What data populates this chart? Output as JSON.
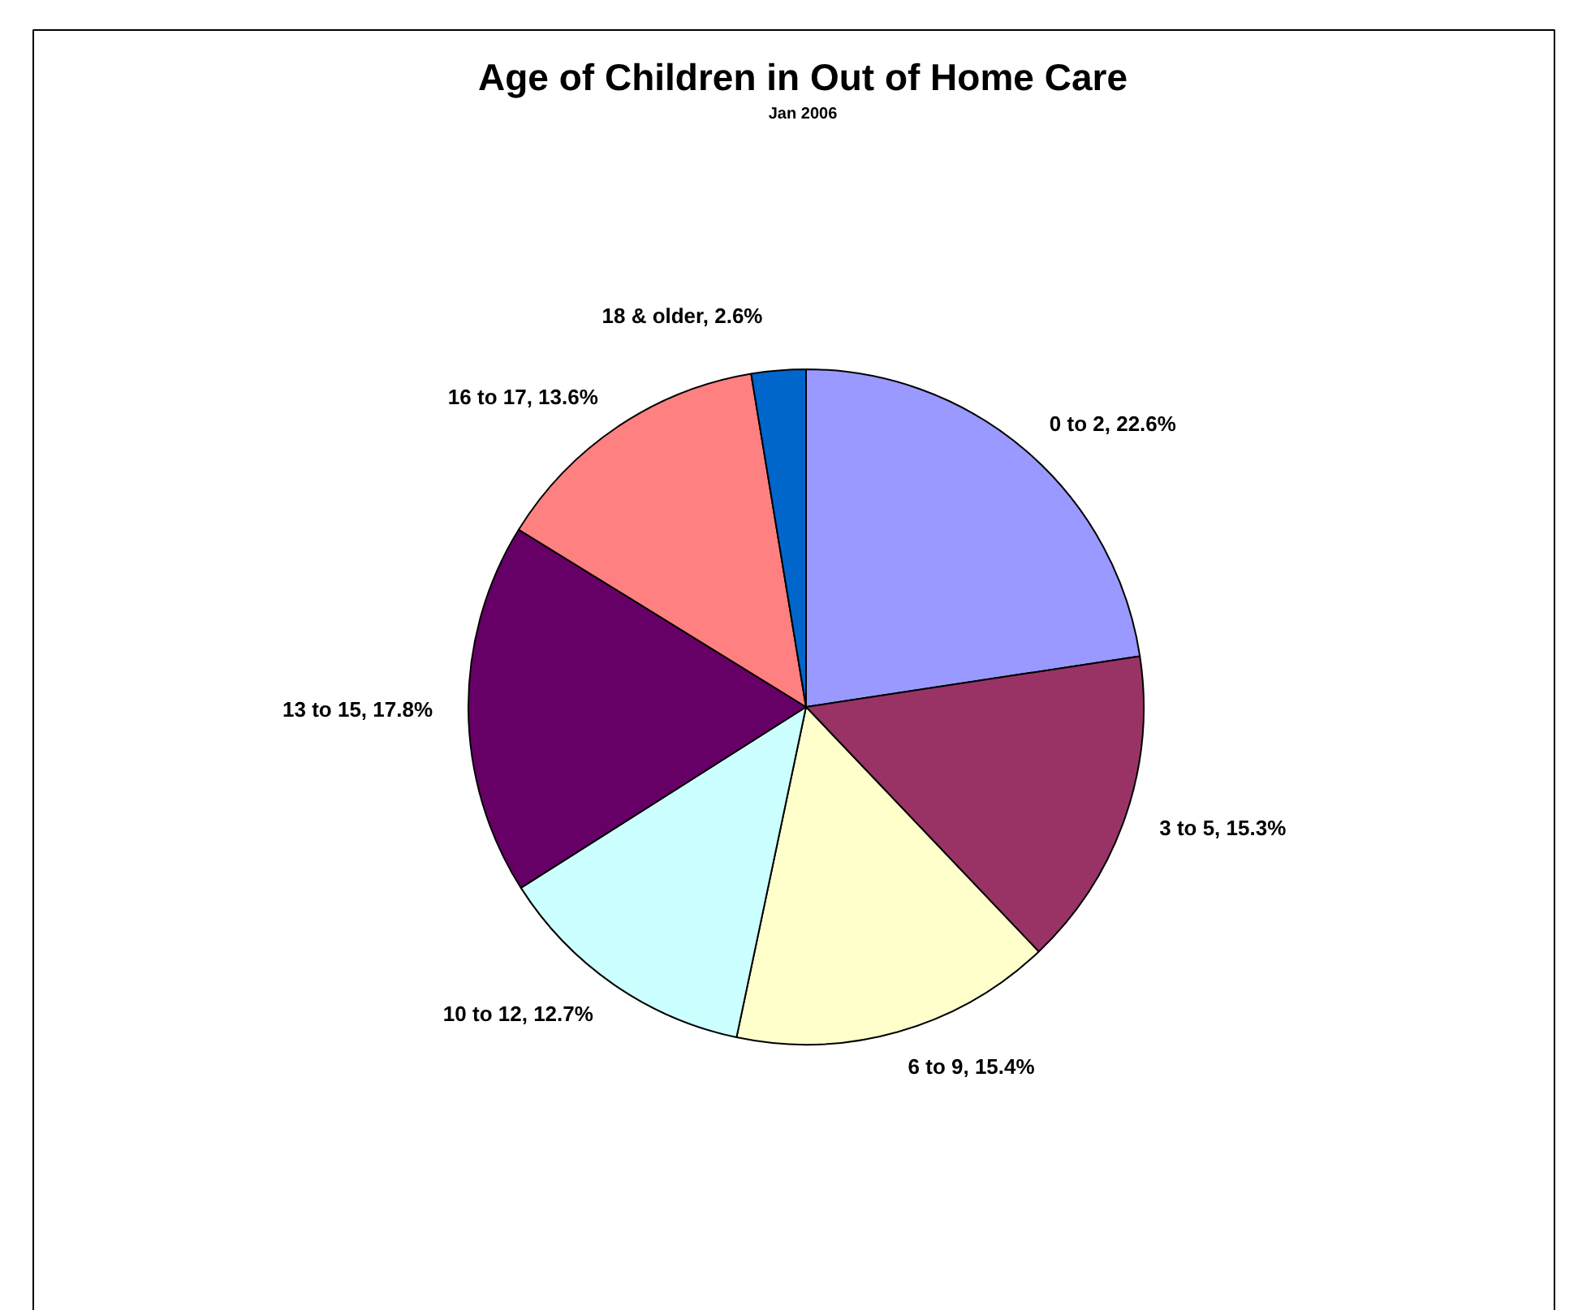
{
  "chart_data": {
    "type": "pie",
    "title": "Age of Children in Out of Home Care",
    "subtitle": "Jan 2006",
    "categories": [
      "0 to 2",
      "3 to 5",
      "6 to 9",
      "10 to 12",
      "13 to 15",
      "16 to 17",
      "18 & older"
    ],
    "values": [
      22.6,
      15.3,
      15.4,
      12.7,
      17.8,
      13.6,
      2.6
    ],
    "colors": [
      "#9999ff",
      "#993366",
      "#ffffcc",
      "#ccffff",
      "#660066",
      "#ff8080",
      "#0066cc"
    ],
    "value_labels": [
      "22.6%",
      "15.3%",
      "15.4%",
      "12.7%",
      "17.8%",
      "13.6%",
      "2.6%"
    ]
  }
}
